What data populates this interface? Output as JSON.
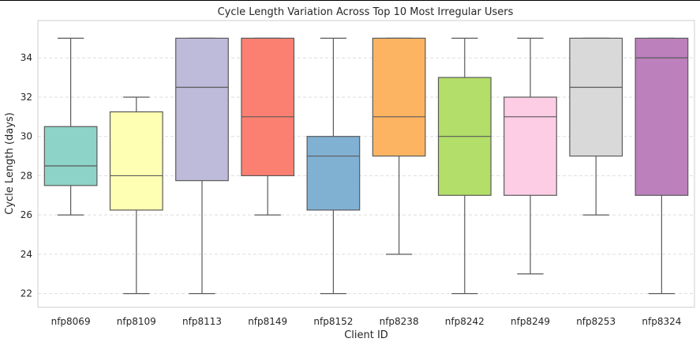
{
  "chart_data": {
    "type": "box",
    "title": "Cycle Length Variation Across Top 10 Most Irregular Users",
    "xlabel": "Client ID",
    "ylabel": "Cycle Length (days)",
    "ylim": [
      21.3,
      35.9
    ],
    "yticks": [
      22,
      24,
      26,
      28,
      30,
      32,
      34
    ],
    "grid": "horizontal dashed",
    "categories": [
      "nfp8069",
      "nfp8109",
      "nfp8113",
      "nfp8149",
      "nfp8152",
      "nfp8238",
      "nfp8242",
      "nfp8249",
      "nfp8253",
      "nfp8324"
    ],
    "boxes": [
      {
        "category": "nfp8069",
        "whisker_low": 26,
        "q1": 27.5,
        "median": 28.5,
        "q3": 30.5,
        "whisker_high": 35,
        "color": "#8dd3c7"
      },
      {
        "category": "nfp8109",
        "whisker_low": 22,
        "q1": 26.25,
        "median": 28,
        "q3": 31.25,
        "whisker_high": 32,
        "color": "#ffffb3"
      },
      {
        "category": "nfp8113",
        "whisker_low": 22,
        "q1": 27.75,
        "median": 32.5,
        "q3": 35,
        "whisker_high": 35,
        "color": "#bebada"
      },
      {
        "category": "nfp8149",
        "whisker_low": 26,
        "q1": 28,
        "median": 31,
        "q3": 35,
        "whisker_high": 35,
        "color": "#fb8072"
      },
      {
        "category": "nfp8152",
        "whisker_low": 22,
        "q1": 26.25,
        "median": 29,
        "q3": 30,
        "whisker_high": 35,
        "color": "#80b1d3"
      },
      {
        "category": "nfp8238",
        "whisker_low": 24,
        "q1": 29,
        "median": 31,
        "q3": 35,
        "whisker_high": 35,
        "color": "#fdb462"
      },
      {
        "category": "nfp8242",
        "whisker_low": 22,
        "q1": 27,
        "median": 30,
        "q3": 33,
        "whisker_high": 35,
        "color": "#b3de69"
      },
      {
        "category": "nfp8249",
        "whisker_low": 23,
        "q1": 27,
        "median": 31,
        "q3": 32,
        "whisker_high": 35,
        "color": "#fccde5"
      },
      {
        "category": "nfp8253",
        "whisker_low": 26,
        "q1": 29,
        "median": 32.5,
        "q3": 35,
        "whisker_high": 35,
        "color": "#d9d9d9"
      },
      {
        "category": "nfp8324",
        "whisker_low": 22,
        "q1": 27,
        "median": 34,
        "q3": 35,
        "whisker_high": 35,
        "color": "#bc80bd"
      }
    ]
  }
}
